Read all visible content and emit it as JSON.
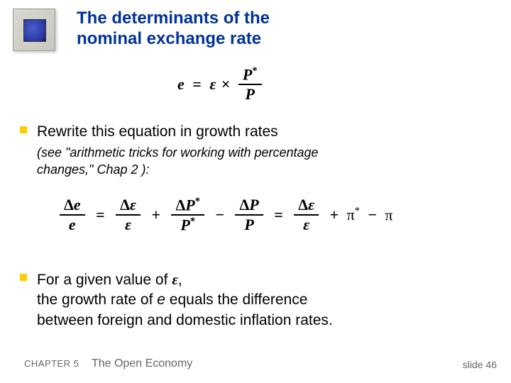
{
  "title_line1": "The determinants of the",
  "title_line2": "nominal exchange rate",
  "title_color": "#003399",
  "bullet_color": "#ffcc00",
  "eq1": {
    "lhs": "e",
    "eq": "=",
    "eps": "ε",
    "times": "×",
    "num": "P",
    "num_sup": "*",
    "den": "P"
  },
  "bullet1_text": "Rewrite this equation in growth rates",
  "bullet1_sub_a": "(see \"arithmetic tricks for working with percentage",
  "bullet1_sub_b": "changes,\" Chap 2 ):",
  "eq2": {
    "d": "Δ",
    "e": "e",
    "eps": "ε",
    "P": "P",
    "star": "*",
    "eq": "=",
    "plus": "+",
    "minus": "−",
    "pi": "π"
  },
  "bullet2_l1a": "For a given value of ",
  "bullet2_l1b": "ε",
  "bullet2_l1c": ",",
  "bullet2_l2a": "the growth rate of ",
  "bullet2_l2b": "e",
  "bullet2_l2c": "  equals the difference",
  "bullet2_l3": "between foreign and domestic inflation rates.",
  "footer_chap": "CHAPTER 5",
  "footer_title": "The Open Economy",
  "slide": "slide 46"
}
